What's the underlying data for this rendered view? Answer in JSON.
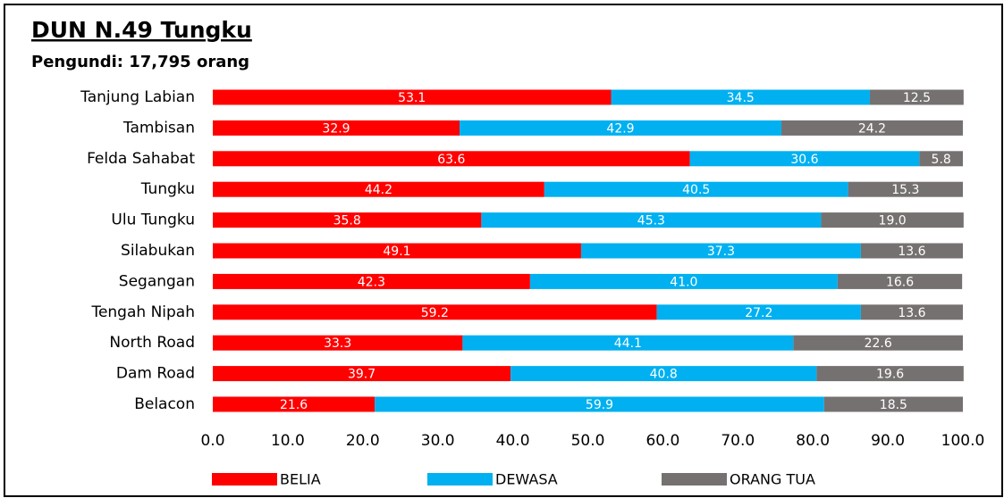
{
  "chart_data": {
    "type": "bar",
    "orientation": "horizontal",
    "stacked": true,
    "title": "DUN N.49 Tungku",
    "subtitle": "Pengundi: 17,795 orang",
    "categories": [
      "Tanjung Labian",
      "Tambisan",
      "Felda Sahabat",
      "Tungku",
      "Ulu Tungku",
      "Silabukan",
      "Segangan",
      "Tengah Nipah",
      "North Road",
      "Dam Road",
      "Belacon"
    ],
    "series": [
      {
        "name": "BELIA",
        "color": "#ff0000",
        "values": [
          53.1,
          32.9,
          63.6,
          44.2,
          35.8,
          49.1,
          42.3,
          59.2,
          33.3,
          39.7,
          21.6
        ],
        "value_labels": [
          "53.1",
          "32.9",
          "63.6",
          "44.2",
          "35.8",
          "49.1",
          "42.3",
          "59.2",
          "33.3",
          "39.7",
          "21.6"
        ]
      },
      {
        "name": "DEWASA",
        "color": "#00b0f0",
        "values": [
          34.5,
          42.9,
          30.6,
          40.5,
          45.3,
          37.3,
          41.0,
          27.2,
          44.1,
          40.8,
          59.9
        ],
        "value_labels": [
          "34.5",
          "42.9",
          "30.6",
          "40.5",
          "45.3",
          "37.3",
          "41.0",
          "27.2",
          "44.1",
          "40.8",
          "59.9"
        ]
      },
      {
        "name": "ORANG TUA",
        "color": "#767171",
        "values": [
          12.5,
          24.2,
          5.8,
          15.3,
          19.0,
          13.6,
          16.6,
          13.6,
          22.6,
          19.6,
          18.5
        ],
        "value_labels": [
          "12.5",
          "24.2",
          "5.8",
          "15.3",
          "19.0",
          "13.6",
          "16.6",
          "13.6",
          "22.6",
          "19.6",
          "18.5"
        ]
      }
    ],
    "xlim": [
      0,
      100
    ],
    "xticks": [
      {
        "value": 0,
        "label": "0.0"
      },
      {
        "value": 10,
        "label": "10.0"
      },
      {
        "value": 20,
        "label": "20.0"
      },
      {
        "value": 30,
        "label": "30.0"
      },
      {
        "value": 40,
        "label": "40.0"
      },
      {
        "value": 50,
        "label": "50.0"
      },
      {
        "value": 60,
        "label": "60.0"
      },
      {
        "value": 70,
        "label": "70.0"
      },
      {
        "value": 80,
        "label": "80.0"
      },
      {
        "value": 90,
        "label": "90.0"
      },
      {
        "value": 100,
        "label": "100.0"
      }
    ],
    "grid": false,
    "legend": "bottom"
  }
}
